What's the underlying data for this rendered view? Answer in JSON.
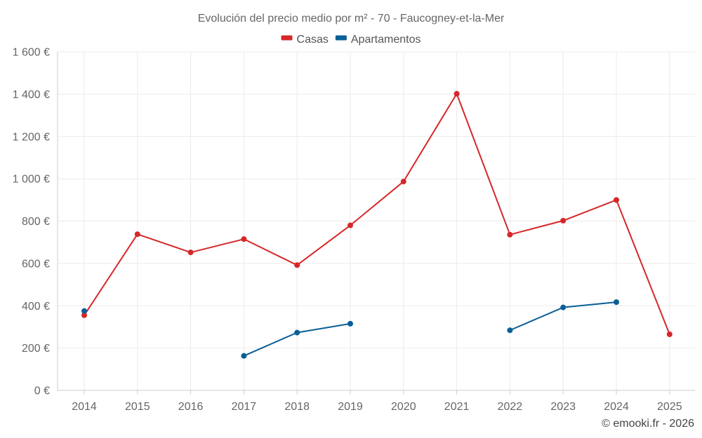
{
  "chart_data": {
    "type": "line",
    "title": "Evolución del precio medio por m² - 70 - Faucogney-et-la-Mer",
    "categories": [
      "2014",
      "2015",
      "2016",
      "2017",
      "2018",
      "2019",
      "2020",
      "2021",
      "2022",
      "2023",
      "2024",
      "2025"
    ],
    "series": [
      {
        "name": "Casas",
        "color": "#d62728",
        "values": [
          355,
          738,
          652,
          715,
          592,
          780,
          987,
          1402,
          736,
          802,
          900,
          265
        ]
      },
      {
        "name": "Apartamentos",
        "color": "#0a5f96",
        "values": [
          375,
          null,
          null,
          163,
          273,
          315,
          null,
          null,
          284,
          392,
          417,
          null
        ]
      }
    ],
    "ylim": [
      0,
      1600
    ],
    "yticks": [
      {
        "value": 0,
        "label": "0 €"
      },
      {
        "value": 200,
        "label": "200 €"
      },
      {
        "value": 400,
        "label": "400 €"
      },
      {
        "value": 600,
        "label": "600 €"
      },
      {
        "value": 800,
        "label": "800 €"
      },
      {
        "value": 1000,
        "label": "1 000 €"
      },
      {
        "value": 1200,
        "label": "1 200 €"
      },
      {
        "value": 1400,
        "label": "1 400 €"
      },
      {
        "value": 1600,
        "label": "1 600 €"
      }
    ],
    "xlabel": "",
    "ylabel": "",
    "grid": true,
    "legend_position": "top-center"
  },
  "credit": "© emooki.fr - 2026"
}
